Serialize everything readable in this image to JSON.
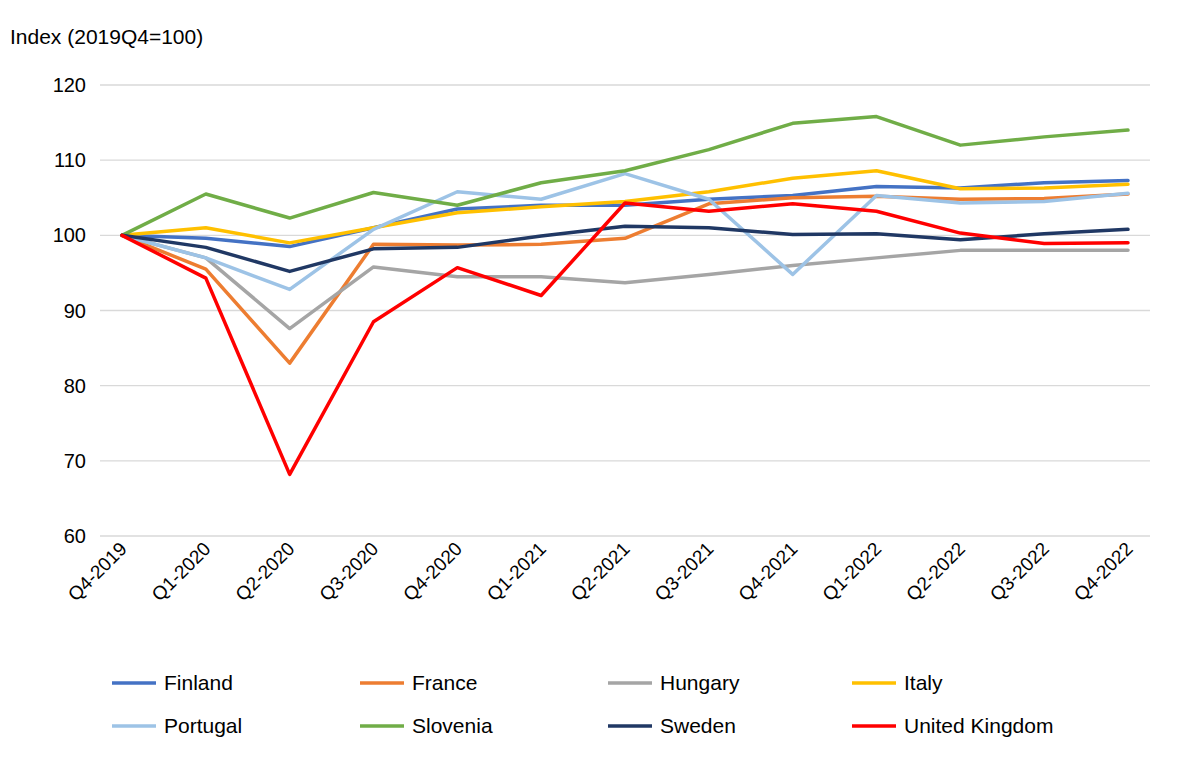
{
  "chart_data": {
    "type": "line",
    "y_label": "Index (2019Q4=100)",
    "categories": [
      "Q4-2019",
      "Q1-2020",
      "Q2-2020",
      "Q3-2020",
      "Q4-2020",
      "Q1-2021",
      "Q2-2021",
      "Q3-2021",
      "Q4-2021",
      "Q1-2022",
      "Q2-2022",
      "Q3-2022",
      "Q4-2022"
    ],
    "series": [
      {
        "name": "Finland",
        "color": "#4472c4",
        "values": [
          100,
          99.6,
          98.5,
          101,
          103.5,
          104,
          104,
          104.8,
          105.3,
          106.5,
          106.3,
          107,
          107.3
        ]
      },
      {
        "name": "France",
        "color": "#ed7d31",
        "values": [
          100,
          95.5,
          83,
          98.8,
          98.7,
          98.8,
          99.6,
          104.2,
          105,
          105.2,
          104.8,
          104.9,
          105.5
        ]
      },
      {
        "name": "Hungary",
        "color": "#a5a5a5",
        "values": [
          100,
          97,
          87.6,
          95.8,
          94.5,
          94.5,
          93.7,
          94.8,
          96,
          97,
          98,
          98,
          98
        ]
      },
      {
        "name": "Italy",
        "color": "#ffc000",
        "values": [
          100,
          101,
          99,
          101,
          103,
          103.8,
          104.5,
          105.8,
          107.6,
          108.6,
          106.2,
          106.3,
          106.8
        ]
      },
      {
        "name": "Portugal",
        "color": "#9dc3e6",
        "values": [
          100,
          97,
          92.8,
          100.8,
          105.8,
          104.8,
          108.2,
          104.8,
          94.8,
          105.3,
          104.3,
          104.5,
          105.6
        ]
      },
      {
        "name": "Slovenia",
        "color": "#70ad47",
        "values": [
          100,
          105.5,
          102.3,
          105.7,
          104,
          107,
          108.6,
          111.4,
          114.9,
          115.8,
          112,
          113.1,
          114
        ]
      },
      {
        "name": "Sweden",
        "color": "#203864",
        "values": [
          100,
          98.4,
          95.2,
          98.2,
          98.4,
          99.9,
          101.2,
          101,
          100.1,
          100.2,
          99.4,
          100.2,
          100.8
        ]
      },
      {
        "name": "United Kingdom",
        "color": "#ff0000",
        "values": [
          100,
          94.3,
          68.2,
          88.5,
          95.7,
          92,
          104.3,
          103.2,
          104.2,
          103.2,
          100.3,
          98.9,
          99
        ]
      }
    ],
    "ylim": [
      60,
      120
    ],
    "yticks": [
      60,
      70,
      80,
      90,
      100,
      110,
      120
    ],
    "grid": true,
    "legend": "bottom"
  }
}
